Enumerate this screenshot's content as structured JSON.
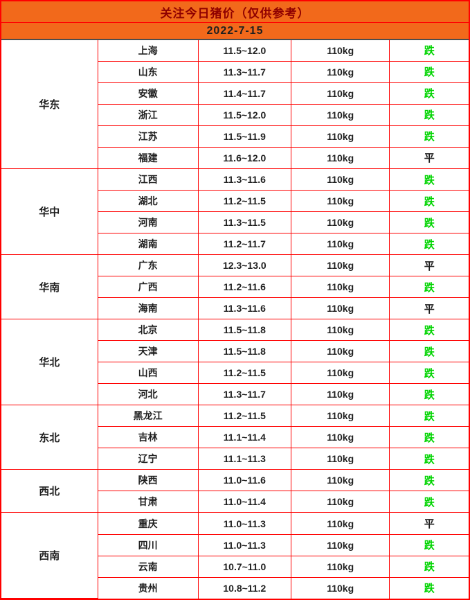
{
  "header": {
    "title": "关注今日猪价（仅供参考）",
    "date": "2022-7-15"
  },
  "colors": {
    "header_orange": "#F2691B",
    "grid_red": "#FF0000",
    "title_dark_red": "#8F0000",
    "text_black": "#1F1F1F",
    "fall_green": "#00D400",
    "header_divider_gray": "#4D4D4D"
  },
  "legend": {
    "fall_label": "跌",
    "flat_label": "平",
    "weight_label": "110kg"
  },
  "chart_data": {
    "type": "table",
    "title": "关注今日猪价（仅供参考）",
    "subtitle": "2022-7-15",
    "columns": [
      "region",
      "province",
      "price_range",
      "weight",
      "trend"
    ],
    "regions": [
      {
        "name": "华东",
        "rows": [
          {
            "province": "上海",
            "price": "11.5~12.0",
            "weight": "110kg",
            "status": "跌",
            "trend": "fall"
          },
          {
            "province": "山东",
            "price": "11.3~11.7",
            "weight": "110kg",
            "status": "跌",
            "trend": "fall"
          },
          {
            "province": "安徽",
            "price": "11.4~11.7",
            "weight": "110kg",
            "status": "跌",
            "trend": "fall"
          },
          {
            "province": "浙江",
            "price": "11.5~12.0",
            "weight": "110kg",
            "status": "跌",
            "trend": "fall"
          },
          {
            "province": "江苏",
            "price": "11.5~11.9",
            "weight": "110kg",
            "status": "跌",
            "trend": "fall"
          },
          {
            "province": "福建",
            "price": "11.6~12.0",
            "weight": "110kg",
            "status": "平",
            "trend": "flat"
          }
        ]
      },
      {
        "name": "华中",
        "rows": [
          {
            "province": "江西",
            "price": "11.3~11.6",
            "weight": "110kg",
            "status": "跌",
            "trend": "fall"
          },
          {
            "province": "湖北",
            "price": "11.2~11.5",
            "weight": "110kg",
            "status": "跌",
            "trend": "fall"
          },
          {
            "province": "河南",
            "price": "11.3~11.5",
            "weight": "110kg",
            "status": "跌",
            "trend": "fall"
          },
          {
            "province": "湖南",
            "price": "11.2~11.7",
            "weight": "110kg",
            "status": "跌",
            "trend": "fall"
          }
        ]
      },
      {
        "name": "华南",
        "rows": [
          {
            "province": "广东",
            "price": "12.3~13.0",
            "weight": "110kg",
            "status": "平",
            "trend": "flat"
          },
          {
            "province": "广西",
            "price": "11.2~11.6",
            "weight": "110kg",
            "status": "跌",
            "trend": "fall"
          },
          {
            "province": "海南",
            "price": "11.3~11.6",
            "weight": "110kg",
            "status": "平",
            "trend": "flat"
          }
        ]
      },
      {
        "name": "华北",
        "rows": [
          {
            "province": "北京",
            "price": "11.5~11.8",
            "weight": "110kg",
            "status": "跌",
            "trend": "fall"
          },
          {
            "province": "天津",
            "price": "11.5~11.8",
            "weight": "110kg",
            "status": "跌",
            "trend": "fall"
          },
          {
            "province": "山西",
            "price": "11.2~11.5",
            "weight": "110kg",
            "status": "跌",
            "trend": "fall"
          },
          {
            "province": "河北",
            "price": "11.3~11.7",
            "weight": "110kg",
            "status": "跌",
            "trend": "fall"
          }
        ]
      },
      {
        "name": "东北",
        "rows": [
          {
            "province": "黑龙江",
            "price": "11.2~11.5",
            "weight": "110kg",
            "status": "跌",
            "trend": "fall"
          },
          {
            "province": "吉林",
            "price": "11.1~11.4",
            "weight": "110kg",
            "status": "跌",
            "trend": "fall"
          },
          {
            "province": "辽宁",
            "price": "11.1~11.3",
            "weight": "110kg",
            "status": "跌",
            "trend": "fall"
          }
        ]
      },
      {
        "name": "西北",
        "rows": [
          {
            "province": "陕西",
            "price": "11.0~11.6",
            "weight": "110kg",
            "status": "跌",
            "trend": "fall"
          },
          {
            "province": "甘肃",
            "price": "11.0~11.4",
            "weight": "110kg",
            "status": "跌",
            "trend": "fall"
          }
        ]
      },
      {
        "name": "西南",
        "rows": [
          {
            "province": "重庆",
            "price": "11.0~11.3",
            "weight": "110kg",
            "status": "平",
            "trend": "flat"
          },
          {
            "province": "四川",
            "price": "11.0~11.3",
            "weight": "110kg",
            "status": "跌",
            "trend": "fall"
          },
          {
            "province": "云南",
            "price": "10.7~11.0",
            "weight": "110kg",
            "status": "跌",
            "trend": "fall"
          },
          {
            "province": "贵州",
            "price": "10.8~11.2",
            "weight": "110kg",
            "status": "跌",
            "trend": "fall"
          }
        ]
      }
    ]
  }
}
